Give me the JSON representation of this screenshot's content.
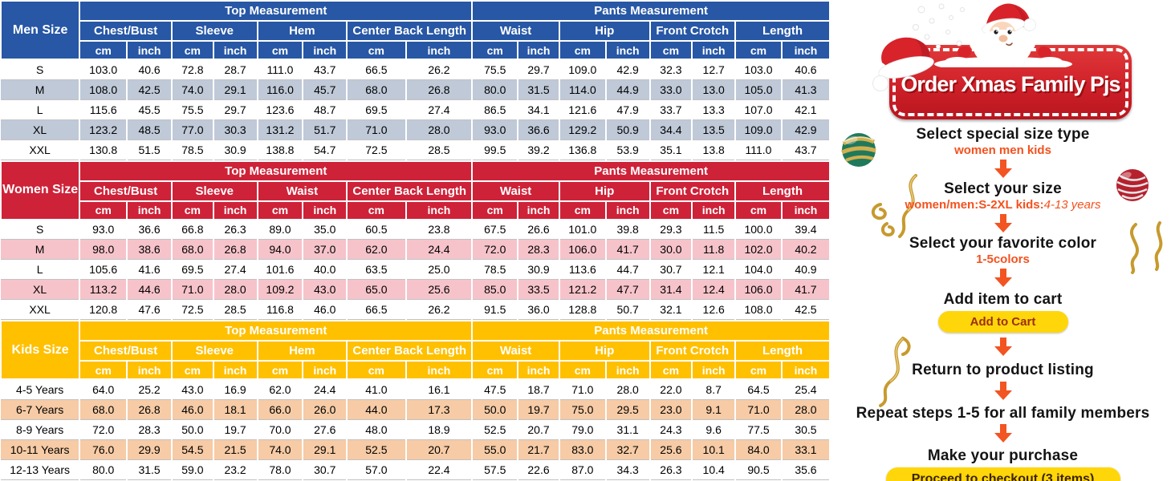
{
  "tables": [
    {
      "id": "men",
      "size_label": "Men Size",
      "theme": {
        "header_bg": "#2757a5",
        "alt_row_bg": "#bfc9d8"
      },
      "group_headers": [
        "Top Measurement",
        "Pants Measurement"
      ],
      "columns": [
        "Chest/Bust",
        "Sleeve",
        "Hem",
        "Center Back Length",
        "Waist",
        "Hip",
        "Front Crotch",
        "Length"
      ],
      "units": [
        "cm",
        "inch"
      ],
      "rows": [
        {
          "label": "S",
          "values": [
            "103.0",
            "40.6",
            "72.8",
            "28.7",
            "111.0",
            "43.7",
            "66.5",
            "26.2",
            "75.5",
            "29.7",
            "109.0",
            "42.9",
            "32.3",
            "12.7",
            "103.0",
            "40.6"
          ]
        },
        {
          "label": "M",
          "values": [
            "108.0",
            "42.5",
            "74.0",
            "29.1",
            "116.0",
            "45.7",
            "68.0",
            "26.8",
            "80.0",
            "31.5",
            "114.0",
            "44.9",
            "33.0",
            "13.0",
            "105.0",
            "41.3"
          ]
        },
        {
          "label": "L",
          "values": [
            "115.6",
            "45.5",
            "75.5",
            "29.7",
            "123.6",
            "48.7",
            "69.5",
            "27.4",
            "86.5",
            "34.1",
            "121.6",
            "47.9",
            "33.7",
            "13.3",
            "107.0",
            "42.1"
          ]
        },
        {
          "label": "XL",
          "values": [
            "123.2",
            "48.5",
            "77.0",
            "30.3",
            "131.2",
            "51.7",
            "71.0",
            "28.0",
            "93.0",
            "36.6",
            "129.2",
            "50.9",
            "34.4",
            "13.5",
            "109.0",
            "42.9"
          ]
        },
        {
          "label": "XXL",
          "values": [
            "130.8",
            "51.5",
            "78.5",
            "30.9",
            "138.8",
            "54.7",
            "72.5",
            "28.5",
            "99.5",
            "39.2",
            "136.8",
            "53.9",
            "35.1",
            "13.8",
            "111.0",
            "43.7"
          ]
        }
      ]
    },
    {
      "id": "women",
      "size_label": "Women Size",
      "theme": {
        "header_bg": "#ce2238",
        "alt_row_bg": "#f6c3ca"
      },
      "group_headers": [
        "Top Measurement",
        "Pants Measurement"
      ],
      "columns": [
        "Chest/Bust",
        "Sleeve",
        "Waist",
        "Center Back Length",
        "Waist",
        "Hip",
        "Front Crotch",
        "Length"
      ],
      "units": [
        "cm",
        "inch"
      ],
      "rows": [
        {
          "label": "S",
          "values": [
            "93.0",
            "36.6",
            "66.8",
            "26.3",
            "89.0",
            "35.0",
            "60.5",
            "23.8",
            "67.5",
            "26.6",
            "101.0",
            "39.8",
            "29.3",
            "11.5",
            "100.0",
            "39.4"
          ]
        },
        {
          "label": "M",
          "values": [
            "98.0",
            "38.6",
            "68.0",
            "26.8",
            "94.0",
            "37.0",
            "62.0",
            "24.4",
            "72.0",
            "28.3",
            "106.0",
            "41.7",
            "30.0",
            "11.8",
            "102.0",
            "40.2"
          ]
        },
        {
          "label": "L",
          "values": [
            "105.6",
            "41.6",
            "69.5",
            "27.4",
            "101.6",
            "40.0",
            "63.5",
            "25.0",
            "78.5",
            "30.9",
            "113.6",
            "44.7",
            "30.7",
            "12.1",
            "104.0",
            "40.9"
          ]
        },
        {
          "label": "XL",
          "values": [
            "113.2",
            "44.6",
            "71.0",
            "28.0",
            "109.2",
            "43.0",
            "65.0",
            "25.6",
            "85.0",
            "33.5",
            "121.2",
            "47.7",
            "31.4",
            "12.4",
            "106.0",
            "41.7"
          ]
        },
        {
          "label": "XXL",
          "values": [
            "120.8",
            "47.6",
            "72.5",
            "28.5",
            "116.8",
            "46.0",
            "66.5",
            "26.2",
            "91.5",
            "36.0",
            "128.8",
            "50.7",
            "32.1",
            "12.6",
            "108.0",
            "42.5"
          ]
        }
      ]
    },
    {
      "id": "kids",
      "size_label": "Kids Size",
      "theme": {
        "header_bg": "#ffc000",
        "alt_row_bg": "#f6cba5"
      },
      "group_headers": [
        "Top Measurement",
        "Pants Measurement"
      ],
      "columns": [
        "Chest/Bust",
        "Sleeve",
        "Hem",
        "Center Back Length",
        "Waist",
        "Hip",
        "Front Crotch",
        "Length"
      ],
      "units": [
        "cm",
        "inch"
      ],
      "rows": [
        {
          "label": "4-5 Years",
          "values": [
            "64.0",
            "25.2",
            "43.0",
            "16.9",
            "62.0",
            "24.4",
            "41.0",
            "16.1",
            "47.5",
            "18.7",
            "71.0",
            "28.0",
            "22.0",
            "8.7",
            "64.5",
            "25.4"
          ]
        },
        {
          "label": "6-7 Years",
          "values": [
            "68.0",
            "26.8",
            "46.0",
            "18.1",
            "66.0",
            "26.0",
            "44.0",
            "17.3",
            "50.0",
            "19.7",
            "75.0",
            "29.5",
            "23.0",
            "9.1",
            "71.0",
            "28.0"
          ]
        },
        {
          "label": "8-9 Years",
          "values": [
            "72.0",
            "28.3",
            "50.0",
            "19.7",
            "70.0",
            "27.6",
            "48.0",
            "18.9",
            "52.5",
            "20.7",
            "79.0",
            "31.1",
            "24.3",
            "9.6",
            "77.5",
            "30.5"
          ]
        },
        {
          "label": "10-11 Years",
          "values": [
            "76.0",
            "29.9",
            "54.5",
            "21.5",
            "74.0",
            "29.1",
            "52.5",
            "20.7",
            "55.0",
            "21.7",
            "83.0",
            "32.7",
            "25.6",
            "10.1",
            "84.0",
            "33.1"
          ]
        },
        {
          "label": "12-13 Years",
          "values": [
            "80.0",
            "31.5",
            "59.0",
            "23.2",
            "78.0",
            "30.7",
            "57.0",
            "22.4",
            "57.5",
            "22.6",
            "87.0",
            "34.3",
            "26.3",
            "10.4",
            "90.5",
            "35.6"
          ]
        }
      ]
    }
  ],
  "guide": {
    "banner_title": "Order Xmas Family Pjs",
    "step1_title": "Select special size type",
    "step1_subtitle": "women men kids",
    "step2_title": "Select your size",
    "step2_subtitle_bold": "women/men:S-2XL kids:",
    "step2_subtitle_italic": "4-13 years",
    "step3_title": "Select your favorite color",
    "step3_subtitle": "1-5colors",
    "step4_title": "Add item to cart",
    "add_to_cart_button": "Add to Cart",
    "step5_title": "Return to product listing",
    "step6_title": "Repeat steps 1-5 for all family members",
    "step7_title": "Make your purchase",
    "checkout_button": "Proceed to checkout (3 items)",
    "colors": {
      "banner_red": "#cf2029",
      "arrow_orange": "#f25422",
      "subtitle_orange": "#f4511e",
      "button_yellow": "#ffd60a",
      "men_header_blue": "#2757a5",
      "women_header_red": "#ce2238",
      "kids_header_gold": "#ffc000"
    }
  }
}
